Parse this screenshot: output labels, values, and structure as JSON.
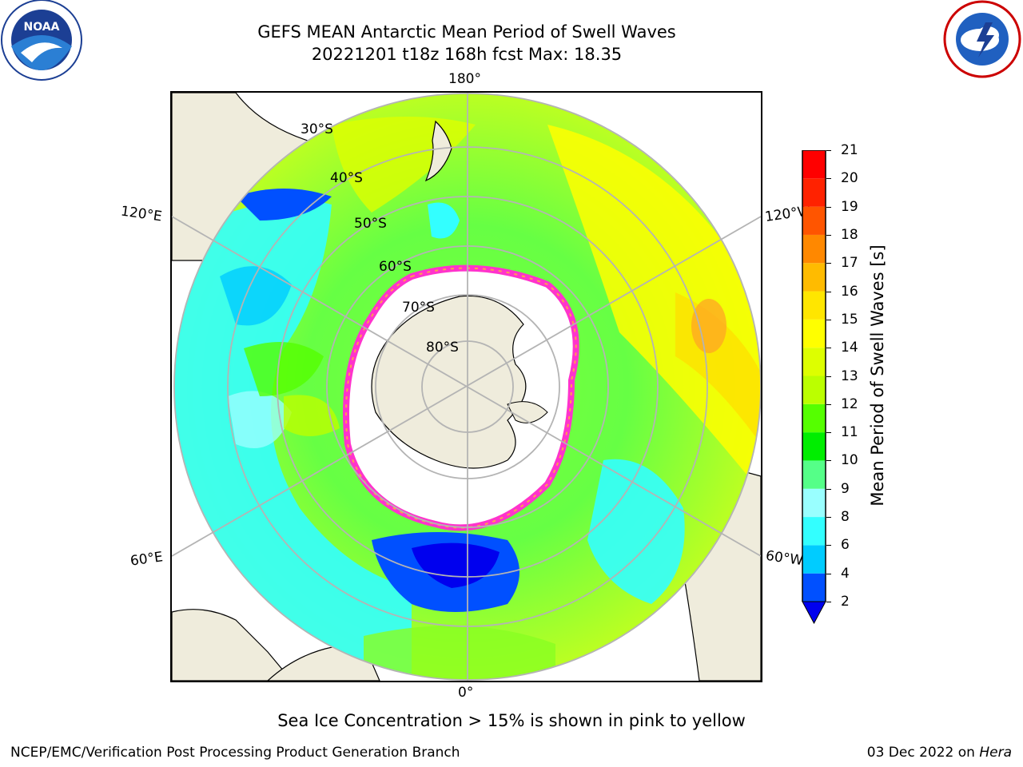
{
  "header": {
    "title_line1": "GEFS MEAN Antarctic Mean Period of Swell Waves",
    "title_line2": "20221201 t18z 168h fcst   Max: 18.35"
  },
  "logos": {
    "noaa_text": "NOAA",
    "noaa_ring": "NATIONAL OCEANIC AND ATMOSPHERIC ADMINISTRATION · U.S. DEPARTMENT OF COMMERCE",
    "nws_ring": "NATIONAL WEATHER SERVICE"
  },
  "map": {
    "projection": "south polar stereographic",
    "lat_labels": [
      "30°S",
      "40°S",
      "50°S",
      "60°S",
      "70°S",
      "80°S"
    ],
    "lon_labels": {
      "top": "180°",
      "bottom": "0°",
      "upper_left": "120°E",
      "upper_right": "120°W",
      "lower_left": "60°E",
      "lower_right": "60°W"
    },
    "colors": {
      "land": "#efecdc",
      "sea_ice": "#ffffff",
      "ice_edge": "#ff33cc",
      "graticule": "#b4b4b4"
    },
    "field_max": 18.35
  },
  "colorbar": {
    "label": "Mean Period of Swell Waves [s]",
    "ticks": [
      "2",
      "4",
      "6",
      "8",
      "9",
      "10",
      "11",
      "12",
      "13",
      "14",
      "15",
      "16",
      "17",
      "18",
      "19",
      "20",
      "21"
    ],
    "colors": [
      "#0050ff",
      "#00ccff",
      "#33ffff",
      "#99ffff",
      "#55ff88",
      "#00ee00",
      "#55ff00",
      "#bbff00",
      "#ddff00",
      "#ffff00",
      "#ffe600",
      "#ffbb00",
      "#ff8800",
      "#ff5500",
      "#ff2200",
      "#ff0000"
    ],
    "under_color": "#0000ee"
  },
  "footer": {
    "sea_ice_note": "Sea Ice Concentration > 15% is shown in pink to yellow",
    "credit": "NCEP/EMC/Verification Post Processing Product Generation Branch",
    "date": "03 Dec 2022",
    "date_connector": " on ",
    "machine": "Hera"
  }
}
